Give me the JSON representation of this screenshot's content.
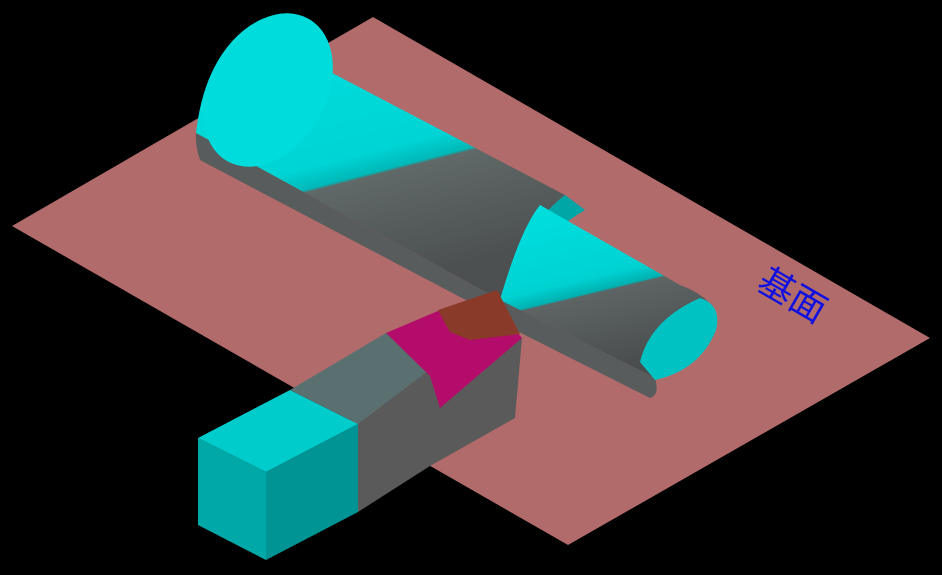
{
  "labels": {
    "plane": "基面"
  },
  "colors": {
    "background": "#000000",
    "plane": "#b26b6b",
    "workpiece_light": "#00d8d8",
    "workpiece_mid": "#00b4b4",
    "workpiece_dark": "#5c5c5c",
    "tool_shank_top": "#00cccc",
    "tool_shank_side": "#009a9a",
    "tool_insert_rake": "#b30c6a",
    "tool_insert_tip": "#8a3a28",
    "tool_grey": "#5a5a5a",
    "label_text": "#1010e0"
  }
}
